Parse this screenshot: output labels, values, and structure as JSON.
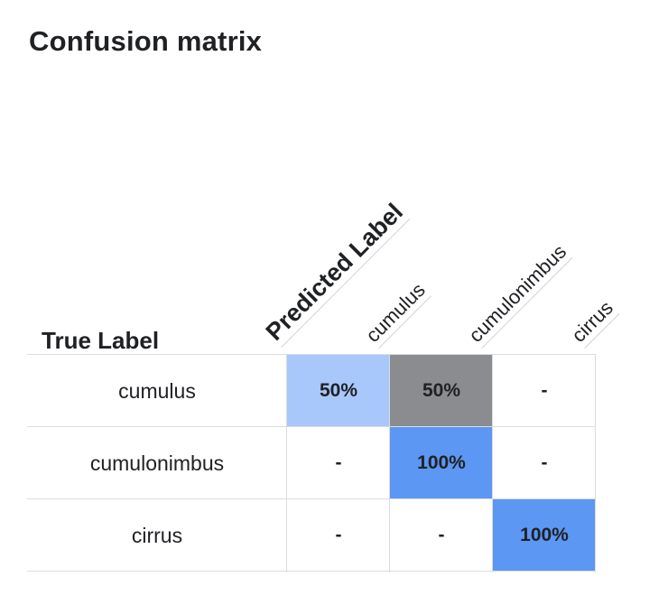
{
  "title": "Confusion matrix",
  "true_label": "True Label",
  "predicted_label": "Predicted Label",
  "chart_data": {
    "type": "heatmap",
    "title": "Confusion matrix",
    "xlabel": "Predicted Label",
    "ylabel": "True Label",
    "rows": [
      "cumulus",
      "cumulonimbus",
      "cirrus"
    ],
    "columns": [
      "cumulus",
      "cumulonimbus",
      "cirrus"
    ],
    "values": [
      [
        50,
        50,
        null
      ],
      [
        null,
        100,
        null
      ],
      [
        null,
        null,
        100
      ]
    ],
    "cells": [
      [
        "50%",
        "50%",
        "-"
      ],
      [
        "-",
        "100%",
        "-"
      ],
      [
        "-",
        "-",
        "100%"
      ]
    ],
    "colors": {
      "correct": "#5b97f3",
      "correct_light": "#a8c8fb",
      "misclassified": "#8a8c8f",
      "empty": "#ffffff"
    }
  }
}
